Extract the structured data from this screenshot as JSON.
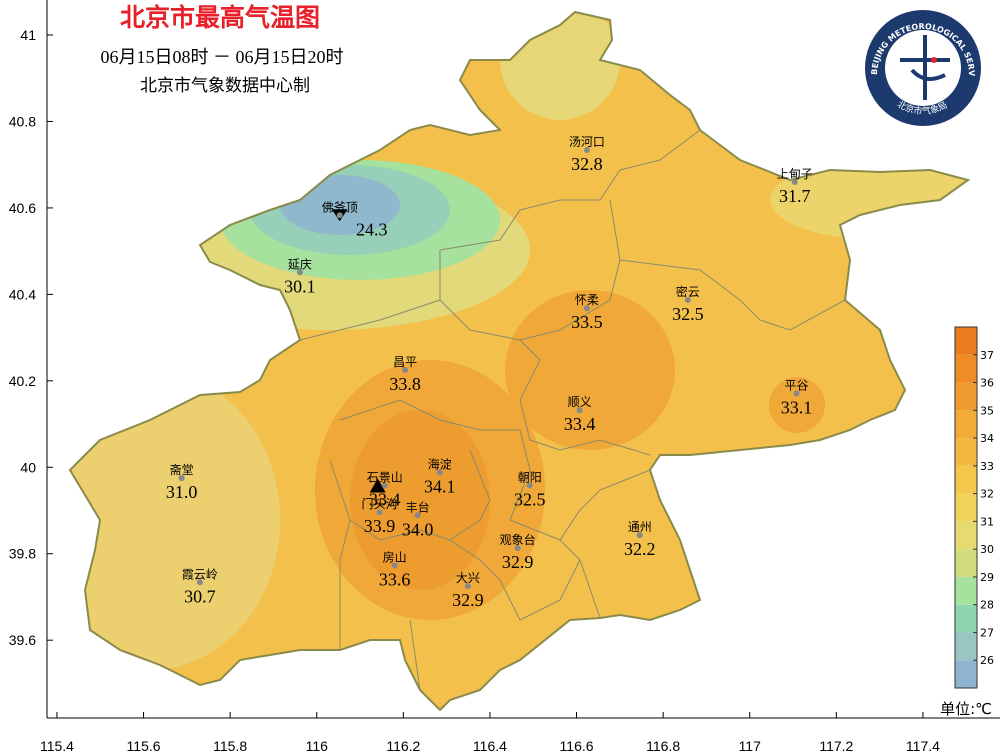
{
  "title": "北京市最高气温图",
  "time_range": "06月15日08时 － 06月15日20时",
  "producer": "北京市气象数据中心制",
  "logo": {
    "text_top": "BEIJING METEOROLOGICAL SERVICE",
    "text_bottom": "北京市气象局"
  },
  "xlim": [
    115.377,
    117.578
  ],
  "xticks": [
    115.4,
    115.6,
    115.8,
    116,
    116.2,
    116.4,
    116.6,
    116.8,
    117,
    117.2,
    117.4
  ],
  "ylim": [
    39.42,
    41.081
  ],
  "yticks": [
    39.6,
    39.8,
    40,
    40.2,
    40.4,
    40.6,
    40.8,
    41
  ],
  "stations": [
    {
      "name": "汤河口",
      "lon": 116.624,
      "lat": 40.734,
      "value": 32.8
    },
    {
      "name": "上甸子",
      "lon": 117.104,
      "lat": 40.66,
      "value": 31.7
    },
    {
      "name": "佛爷顶",
      "lon": 116.053,
      "lat": 40.583,
      "value": 24.3
    },
    {
      "name": "延庆",
      "lon": 115.961,
      "lat": 40.451,
      "value": 30.1
    },
    {
      "name": "怀柔",
      "lon": 116.624,
      "lat": 40.368,
      "value": 33.5
    },
    {
      "name": "密云",
      "lon": 116.857,
      "lat": 40.387,
      "value": 32.5
    },
    {
      "name": "昌平",
      "lon": 116.204,
      "lat": 40.225,
      "value": 33.8
    },
    {
      "name": "平谷",
      "lon": 117.108,
      "lat": 40.171,
      "value": 33.1
    },
    {
      "name": "顺义",
      "lon": 116.607,
      "lat": 40.132,
      "value": 33.4
    },
    {
      "name": "海淀",
      "lon": 116.284,
      "lat": 39.988,
      "value": 34.1
    },
    {
      "name": "石景山",
      "lon": 116.157,
      "lat": 39.958,
      "value": 33.4
    },
    {
      "name": "门头沟",
      "lon": 116.145,
      "lat": 39.896,
      "value": 33.9
    },
    {
      "name": "丰台",
      "lon": 116.233,
      "lat": 39.889,
      "value": 34.0,
      "value_label": "34.0"
    },
    {
      "name": "朝阳",
      "lon": 116.492,
      "lat": 39.958,
      "value": 32.5
    },
    {
      "name": "通州",
      "lon": 116.746,
      "lat": 39.843,
      "value": 32.2
    },
    {
      "name": "观象台",
      "lon": 116.464,
      "lat": 39.813,
      "value": 32.9
    },
    {
      "name": "房山",
      "lon": 116.18,
      "lat": 39.773,
      "value": 33.6
    },
    {
      "name": "大兴",
      "lon": 116.349,
      "lat": 39.725,
      "value": 32.9
    },
    {
      "name": "斋堂",
      "lon": 115.688,
      "lat": 39.975,
      "value": 31.0,
      "value_label": "31.0"
    },
    {
      "name": "霞云岭",
      "lon": 115.73,
      "lat": 39.734,
      "value": 30.7
    }
  ],
  "legend": {
    "range": [
      25,
      38
    ],
    "ticks": [
      26,
      27,
      28,
      29,
      30,
      31,
      32,
      33,
      34,
      35,
      36,
      37
    ],
    "colors": [
      "#8fb4cf",
      "#9ac6c2",
      "#8fd6b0",
      "#a6e19e",
      "#d3dc7e",
      "#e6da72",
      "#f2d35a",
      "#f5c64c",
      "#f4b842",
      "#f2aa38",
      "#f09c30",
      "#ee8c28",
      "#e87c1e"
    ],
    "unit": "单位:℃"
  }
}
